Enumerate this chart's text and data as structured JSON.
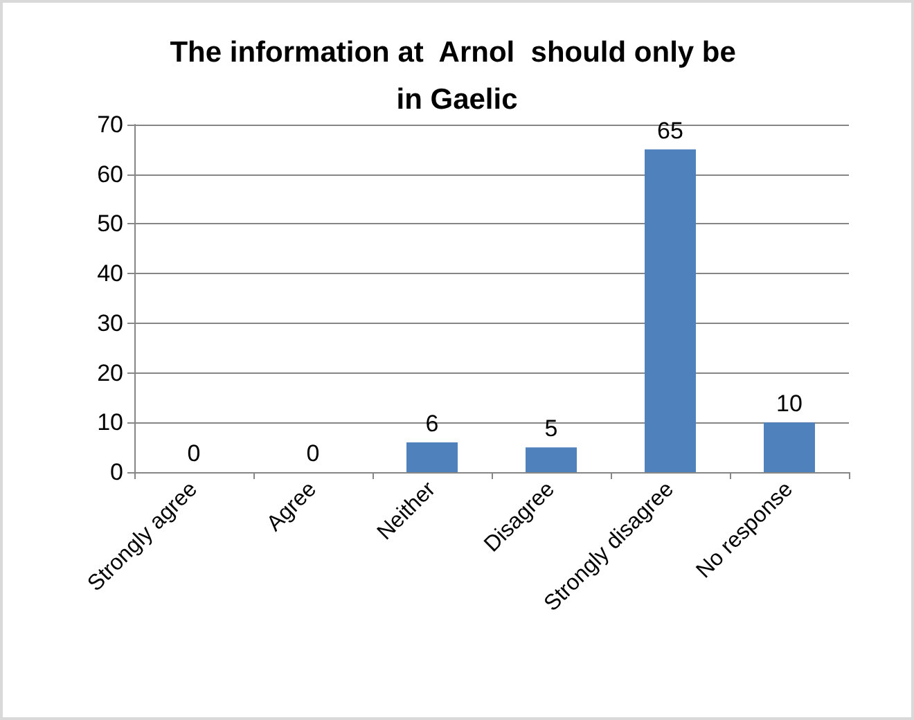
{
  "chart_data": {
    "type": "bar",
    "title": "The information at  Arnol  should only be in Gaelic",
    "categories": [
      "Strongly agree",
      "Agree",
      "Neither",
      "Disagree",
      "Strongly disagree",
      "No response"
    ],
    "values": [
      0,
      0,
      6,
      5,
      65,
      10
    ],
    "color": "#4f81bd",
    "ylim": [
      0,
      70
    ],
    "yticks": [
      0,
      10,
      20,
      30,
      40,
      50,
      60,
      70
    ],
    "grid": "y",
    "data_labels": true
  }
}
